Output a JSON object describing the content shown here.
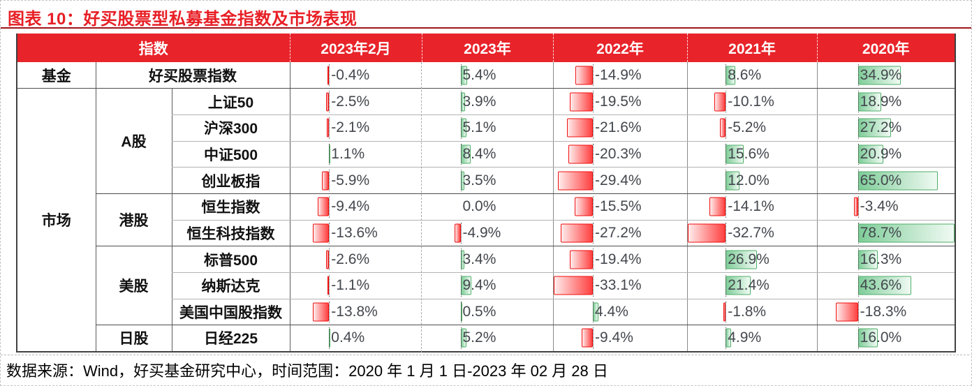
{
  "title": "图表 10：好买股票型私募基金指数及市场表现",
  "footer": "数据来源：Wind，好买基金研究中心，时间范围：2020 年 1 月 1 日-2023 年 02 月 28 日",
  "header": {
    "index_label": "指数",
    "year_columns": [
      "2023年2月",
      "2023年",
      "2022年",
      "2021年",
      "2020年"
    ]
  },
  "colors": {
    "accent_red": "#e8232a",
    "title_red": "#e71f25",
    "positive_bar_fill": "#7fcd99",
    "positive_bar_border": "#4fae68",
    "negative_bar_fill": "#ff4040",
    "negative_bar_border": "#ef0f0f"
  },
  "chart_data": {
    "type": "table",
    "unit": "percent",
    "columns": [
      "指数",
      "2023年2月",
      "2023年",
      "2022年",
      "2021年",
      "2020年"
    ],
    "bar_style": {
      "axis_position_pct": 29.6,
      "pct_width_per_unit": 0.894,
      "note": "in-cell data bars, negative left of dotted axis (red), positive right (green)"
    },
    "groups": [
      {
        "label": "基金",
        "subgroups": [
          {
            "label": "",
            "rows": [
              {
                "name": "好买股票指数",
                "values": [
                  -0.4,
                  5.4,
                  -14.9,
                  8.6,
                  34.9
                ]
              }
            ]
          }
        ]
      },
      {
        "label": "市场",
        "subgroups": [
          {
            "label": "A股",
            "rows": [
              {
                "name": "上证50",
                "values": [
                  -2.5,
                  3.9,
                  -19.5,
                  -10.1,
                  18.9
                ]
              },
              {
                "name": "沪深300",
                "values": [
                  -2.1,
                  5.1,
                  -21.6,
                  -5.2,
                  27.2
                ]
              },
              {
                "name": "中证500",
                "values": [
                  1.1,
                  8.4,
                  -20.3,
                  15.6,
                  20.9
                ]
              },
              {
                "name": "创业板指",
                "values": [
                  -5.9,
                  3.5,
                  -29.4,
                  12.0,
                  65.0
                ]
              }
            ]
          },
          {
            "label": "港股",
            "rows": [
              {
                "name": "恒生指数",
                "values": [
                  -9.4,
                  0.0,
                  -15.5,
                  -14.1,
                  -3.4
                ]
              },
              {
                "name": "恒生科技指数",
                "values": [
                  -13.6,
                  -4.9,
                  -27.2,
                  -32.7,
                  78.7
                ]
              }
            ]
          },
          {
            "label": "美股",
            "rows": [
              {
                "name": "标普500",
                "values": [
                  -2.6,
                  3.4,
                  -19.4,
                  26.9,
                  16.3
                ]
              },
              {
                "name": "纳斯达克",
                "values": [
                  -1.1,
                  9.4,
                  -33.1,
                  21.4,
                  43.6
                ]
              },
              {
                "name": "美国中国股指数",
                "values": [
                  -13.8,
                  0.5,
                  4.4,
                  -1.8,
                  -18.3
                ]
              }
            ]
          },
          {
            "label": "日股",
            "rows": [
              {
                "name": "日经225",
                "values": [
                  0.4,
                  5.2,
                  -9.4,
                  4.9,
                  16.0
                ]
              }
            ]
          }
        ]
      }
    ]
  }
}
